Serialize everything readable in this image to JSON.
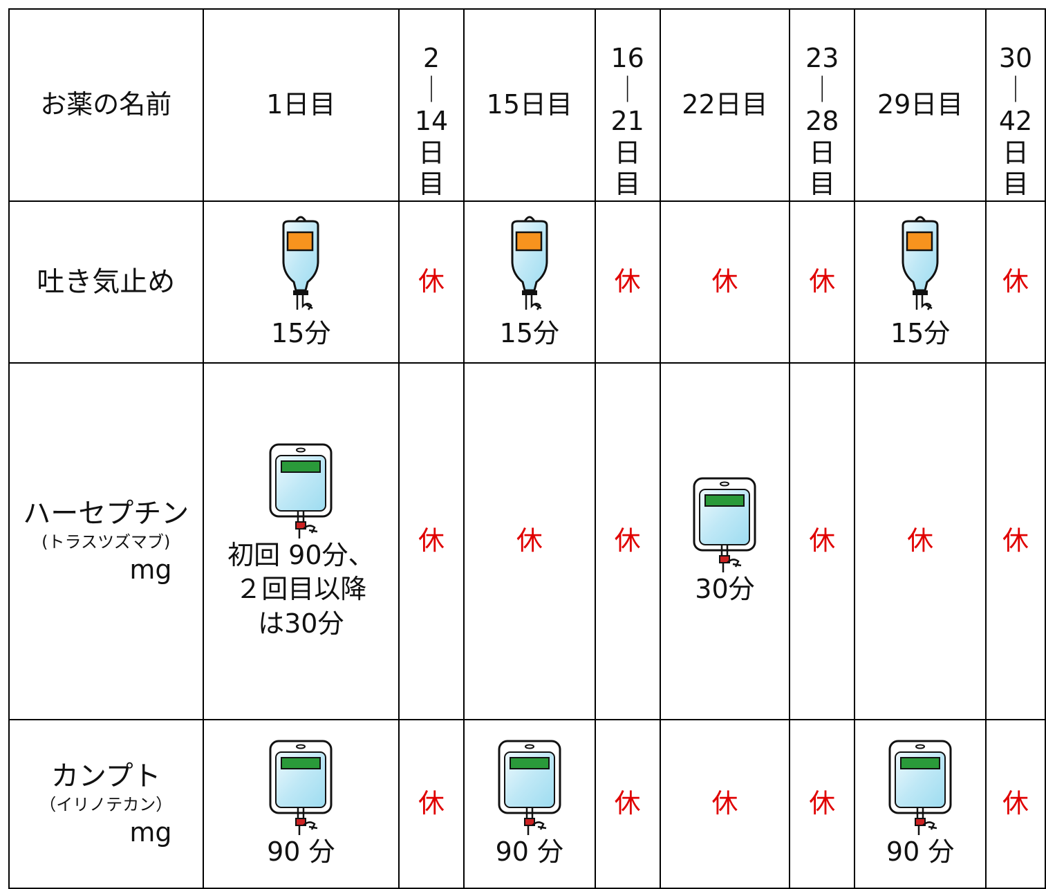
{
  "table": {
    "header": [
      [
        "お薬の名前"
      ],
      [
        "1日目"
      ],
      [
        "2",
        "｜",
        "14",
        "日",
        "目"
      ],
      [
        "15日目"
      ],
      [
        "16",
        "｜",
        "21",
        "日",
        "目"
      ],
      [
        "22日目"
      ],
      [
        "23",
        "｜",
        "28",
        "日",
        "目"
      ],
      [
        "29日目"
      ],
      [
        "30",
        "｜",
        "42",
        "日",
        "目"
      ]
    ],
    "rows": [
      {
        "name": [
          "吐き気止め"
        ],
        "cells": [
          [
            "15分"
          ],
          [
            "休"
          ],
          [
            "15分"
          ],
          [
            "休"
          ],
          [
            "休"
          ],
          [
            "休"
          ],
          [
            "15分"
          ],
          [
            "休"
          ]
        ]
      },
      {
        "name": [
          "ハーセプチン",
          "(トラスツズマブ)",
          "mg"
        ],
        "cells": [
          [
            "初回 90分、",
            "２回目以降",
            "は30分"
          ],
          [
            "休"
          ],
          [
            "休"
          ],
          [
            "休"
          ],
          [
            "30分"
          ],
          [
            "休"
          ],
          [
            "休"
          ],
          [
            "休"
          ]
        ]
      },
      {
        "name": [
          "カンプト",
          "（イリノテカン）",
          "mg"
        ],
        "cells": [
          [
            "90 分"
          ],
          [
            "休"
          ],
          [
            "90 分"
          ],
          [
            "休"
          ],
          [
            "休"
          ],
          [
            "休"
          ],
          [
            "90 分"
          ],
          [
            "休"
          ]
        ]
      }
    ]
  }
}
